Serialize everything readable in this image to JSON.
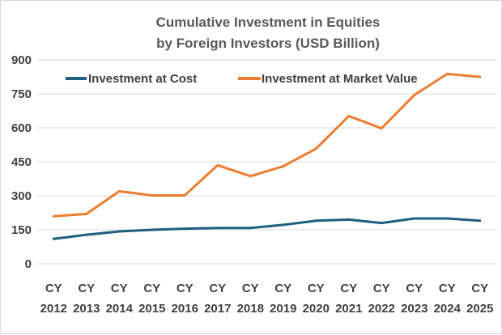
{
  "chart_data": {
    "type": "line",
    "title": [
      "Cumulative Investment in Equities",
      "by Foreign Investors (USD Billion)"
    ],
    "xlabel": "",
    "ylabel": "",
    "categories": [
      [
        "CY",
        "2012"
      ],
      [
        "CY",
        "2013"
      ],
      [
        "CY",
        "2014"
      ],
      [
        "CY",
        "2015"
      ],
      [
        "CY",
        "2016"
      ],
      [
        "CY",
        "2017"
      ],
      [
        "CY",
        "2018"
      ],
      [
        "CY",
        "2019"
      ],
      [
        "CY",
        "2020"
      ],
      [
        "CY",
        "2021"
      ],
      [
        "CY",
        "2022"
      ],
      [
        "CY",
        "2023"
      ],
      [
        "CY",
        "2024"
      ],
      [
        "CY",
        "2025"
      ]
    ],
    "yticks": [
      "0",
      "150",
      "300",
      "450",
      "600",
      "750",
      "900"
    ],
    "ylim": [
      0,
      900
    ],
    "grid": true,
    "legend_position": "top",
    "series": [
      {
        "name": "Investment at Cost",
        "color": "#1f5f7f",
        "values": [
          110,
          128,
          143,
          150,
          155,
          158,
          158,
          172,
          190,
          195,
          180,
          200,
          200,
          190
        ]
      },
      {
        "name": "Investment at Market Value",
        "color": "#ed7d31",
        "values": [
          210,
          220,
          320,
          302,
          302,
          435,
          387,
          430,
          508,
          652,
          598,
          745,
          838,
          825
        ]
      }
    ]
  }
}
